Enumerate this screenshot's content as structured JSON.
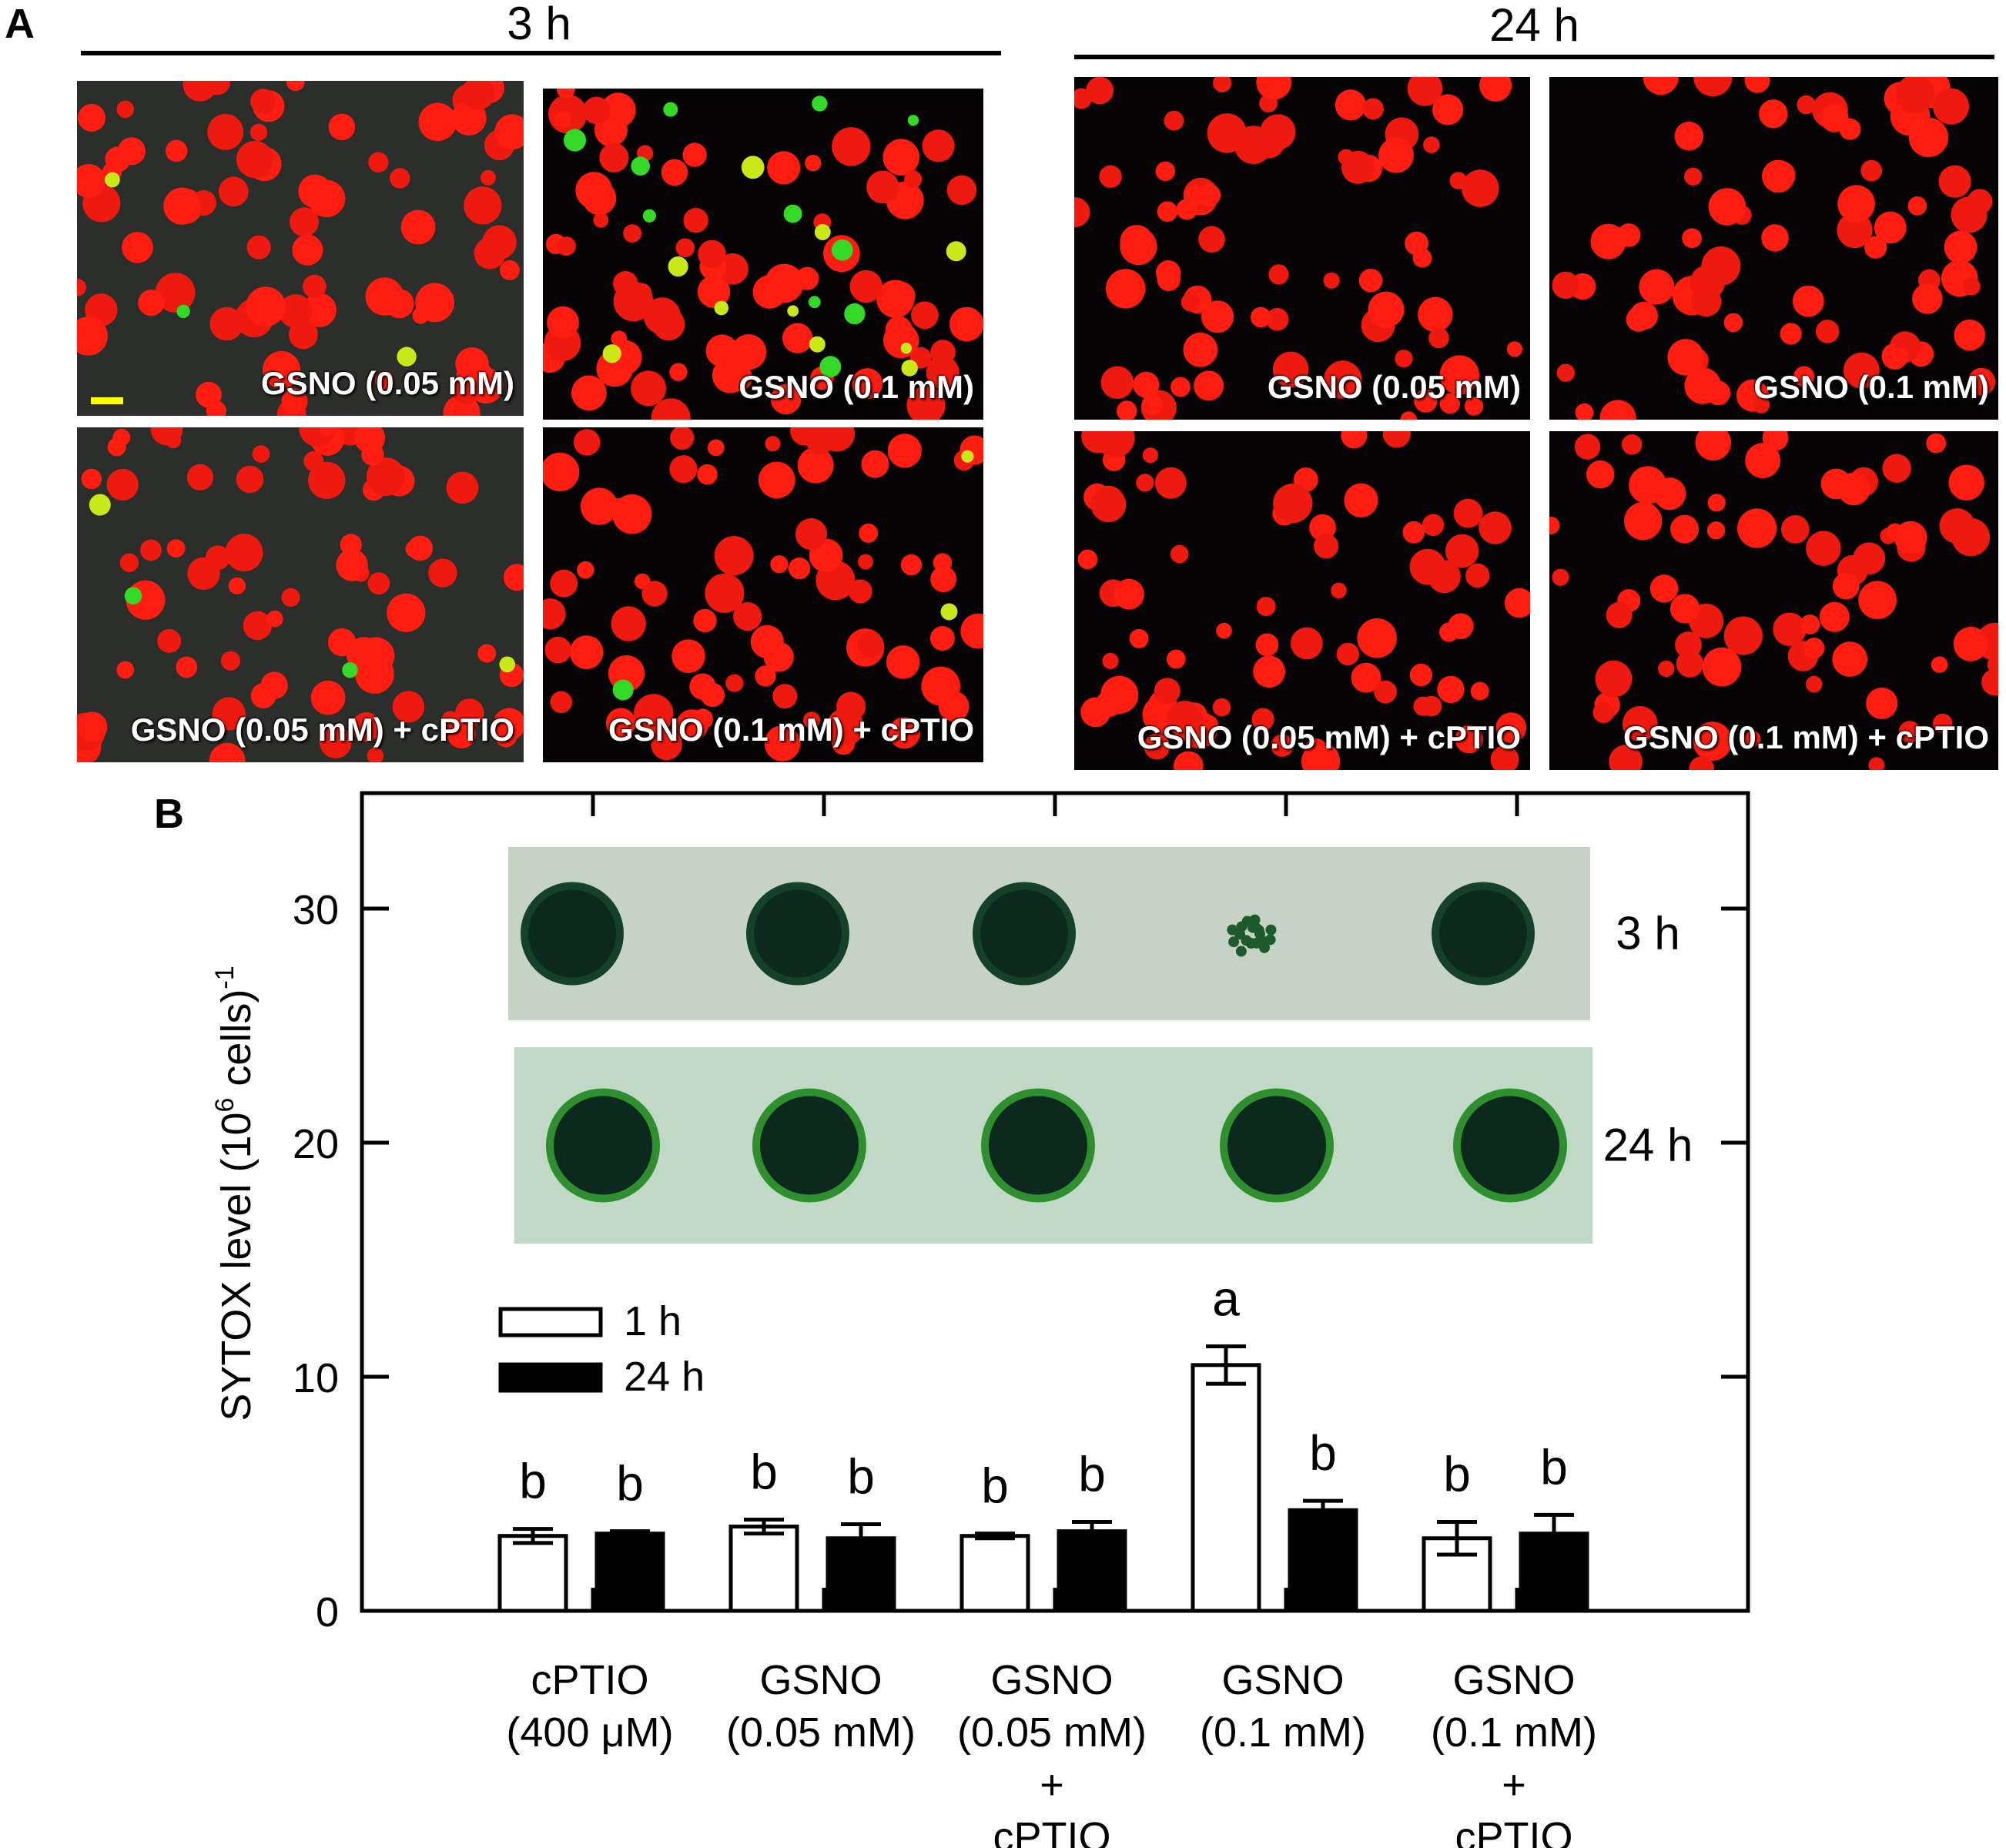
{
  "panelA": {
    "letter": "A",
    "groups": [
      {
        "label": "3 h",
        "theme": "gray",
        "images": [
          {
            "caption": "GSNO (0.05 mM)",
            "green_cells": 3,
            "scale_bar": true
          },
          {
            "caption": "GSNO (0.1 mM)",
            "green_cells": 22,
            "scale_bar": false
          },
          {
            "caption": "GSNO (0.05 mM) + cPTIO",
            "green_cells": 4,
            "scale_bar": false
          },
          {
            "caption": "GSNO (0.1 mM) + cPTIO",
            "green_cells": 3,
            "scale_bar": false
          }
        ]
      },
      {
        "label": "24 h",
        "theme": "black",
        "images": [
          {
            "caption": "GSNO (0.05 mM)",
            "green_cells": 0,
            "scale_bar": false
          },
          {
            "caption": "GSNO (0.1 mM)",
            "green_cells": 0,
            "scale_bar": false
          },
          {
            "caption": "GSNO (0.05 mM) + cPTIO",
            "green_cells": 0,
            "scale_bar": false
          },
          {
            "caption": "GSNO (0.1 mM) + cPTIO",
            "green_cells": 0,
            "scale_bar": false
          }
        ]
      }
    ]
  },
  "panelB": {
    "letter": "B",
    "spot_rows": [
      {
        "label": "3 h",
        "spots": [
          "solid",
          "solid",
          "solid",
          "sparse",
          "solid"
        ]
      },
      {
        "label": "24 h",
        "spots": [
          "solid",
          "solid",
          "solid",
          "solid",
          "solid"
        ]
      }
    ]
  },
  "chart_data": {
    "type": "bar",
    "ylabel_main": "SYTOX level (10",
    "ylabel_sup1": "6",
    "ylabel_mid": " cells)",
    "ylabel_sup2": "-1",
    "ylim": [
      0,
      35
    ],
    "yticks": [
      0,
      10,
      20,
      30
    ],
    "categories": [
      [
        "cPTIO",
        "(400 μM)"
      ],
      [
        "GSNO",
        "(0.05 mM)"
      ],
      [
        "GSNO",
        "(0.05 mM)",
        "+",
        "cPTIO"
      ],
      [
        "GSNO",
        "(0.1 mM)"
      ],
      [
        "GSNO",
        "(0.1 mM)",
        "+",
        "cPTIO"
      ]
    ],
    "series": [
      {
        "name": "1 h",
        "fill": "#ffffff",
        "values": [
          3.2,
          3.6,
          3.2,
          10.5,
          3.1
        ],
        "errors": [
          0.3,
          0.3,
          0.1,
          0.8,
          0.7
        ],
        "letters": [
          "b",
          "b",
          "b",
          "a",
          "b"
        ]
      },
      {
        "name": "24 h",
        "fill": "#000000",
        "values": [
          3.3,
          3.1,
          3.4,
          4.3,
          3.3
        ],
        "errors": [
          0.1,
          0.6,
          0.4,
          0.4,
          0.8
        ],
        "letters": [
          "b",
          "b",
          "b",
          "b",
          "b"
        ]
      }
    ],
    "legend_position": "upper-left"
  }
}
